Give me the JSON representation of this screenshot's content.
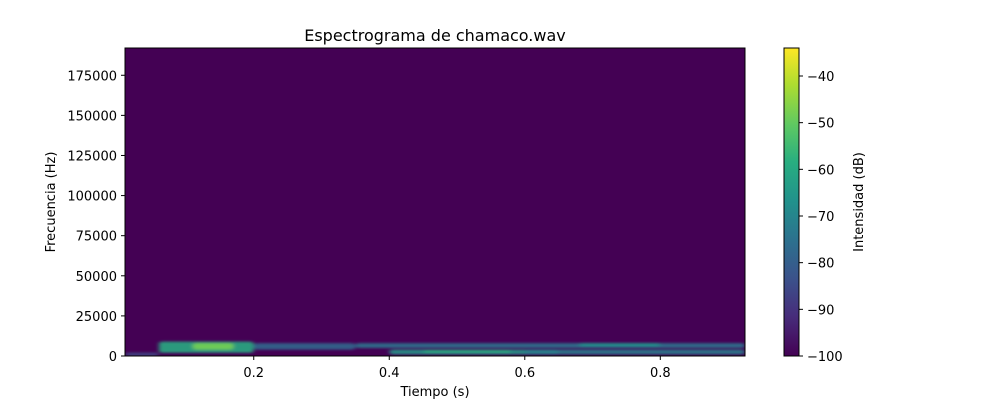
{
  "chart_data": {
    "type": "heatmap",
    "title": "Espectrograma de chamaco.wav",
    "xlabel": "Tiempo (s)",
    "ylabel": "Frecuencia (Hz)",
    "xlim": [
      0.01,
      0.925
    ],
    "ylim": [
      0,
      192000
    ],
    "x_ticks": [
      0.2,
      0.4,
      0.6,
      0.8
    ],
    "x_tick_labels": [
      "0.2",
      "0.4",
      "0.6",
      "0.8"
    ],
    "y_ticks": [
      0,
      25000,
      50000,
      75000,
      100000,
      125000,
      150000,
      175000
    ],
    "y_tick_labels": [
      "0",
      "25000",
      "50000",
      "75000",
      "100000",
      "125000",
      "150000",
      "175000"
    ],
    "colorbar": {
      "label": "Intensidad (dB)",
      "range": [
        -100,
        -34
      ],
      "ticks": [
        -40,
        -50,
        -60,
        -70,
        -80,
        -90,
        -100
      ],
      "tick_labels": [
        "−40",
        "−50",
        "−60",
        "−70",
        "−80",
        "−90",
        "−100"
      ],
      "colormap": "viridis"
    },
    "background_level_db": -100,
    "energy_regions": [
      {
        "t_start": 0.06,
        "t_end": 0.2,
        "f_low": 2000,
        "f_high": 9000,
        "level_db": -60
      },
      {
        "t_start": 0.11,
        "t_end": 0.17,
        "f_low": 4000,
        "f_high": 8000,
        "level_db": -48
      },
      {
        "t_start": 0.01,
        "t_end": 0.06,
        "f_low": 0,
        "f_high": 2000,
        "level_db": -85
      },
      {
        "t_start": 0.2,
        "t_end": 0.35,
        "f_low": 4000,
        "f_high": 8000,
        "level_db": -78
      },
      {
        "t_start": 0.35,
        "t_end": 0.925,
        "f_low": 5000,
        "f_high": 8000,
        "level_db": -75
      },
      {
        "t_start": 0.4,
        "t_end": 0.65,
        "f_low": 1000,
        "f_high": 4000,
        "level_db": -65
      },
      {
        "t_start": 0.45,
        "t_end": 0.58,
        "f_low": 2000,
        "f_high": 3500,
        "level_db": -58
      },
      {
        "t_start": 0.6,
        "t_end": 0.925,
        "f_low": 1000,
        "f_high": 4000,
        "level_db": -72
      },
      {
        "t_start": 0.68,
        "t_end": 0.8,
        "f_low": 6000,
        "f_high": 8000,
        "level_db": -66
      }
    ]
  }
}
